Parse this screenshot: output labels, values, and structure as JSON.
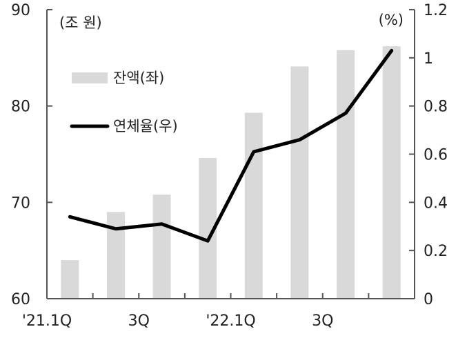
{
  "chart_data": {
    "type": "bar",
    "categories": [
      "'21.1Q",
      "",
      "3Q",
      "",
      "'22.1Q",
      "",
      "3Q",
      ""
    ],
    "series": [
      {
        "name": "잔액(좌)",
        "type": "bar",
        "axis": "left",
        "color": "#d9d9d9",
        "values": [
          64.0,
          69.0,
          70.8,
          74.6,
          79.3,
          84.1,
          85.8,
          86.2
        ]
      },
      {
        "name": "연체율(우)",
        "type": "line",
        "axis": "right",
        "color": "#000000",
        "values": [
          0.34,
          0.29,
          0.31,
          0.24,
          0.61,
          0.66,
          0.77,
          1.03
        ]
      }
    ],
    "left_axis": {
      "unit": "(조 원)",
      "range": [
        60,
        90
      ],
      "ticks": [
        "60",
        "70",
        "80",
        "90"
      ]
    },
    "right_axis": {
      "unit": "(%)",
      "range": [
        0,
        1.2
      ],
      "ticks": [
        "0",
        "0.2",
        "0.4",
        "0.6",
        "0.8",
        "1",
        "1.2"
      ]
    },
    "grid": false,
    "legend": "top-left"
  }
}
